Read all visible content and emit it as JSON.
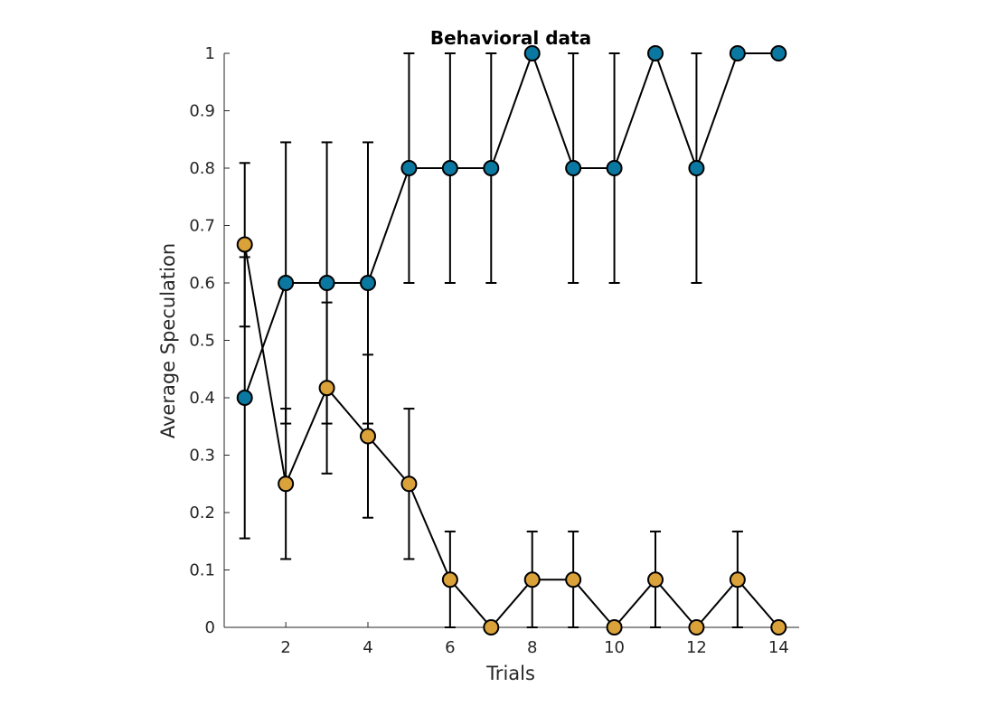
{
  "chart_data": {
    "type": "line",
    "title": "Behavioral data",
    "xlabel": "Trials",
    "ylabel": "Average Speculation",
    "xlim": [
      0.5,
      14.5
    ],
    "ylim": [
      0,
      1
    ],
    "x_ticks": [
      2,
      4,
      6,
      8,
      10,
      12,
      14
    ],
    "y_ticks": [
      0,
      0.1,
      0.2,
      0.3,
      0.4,
      0.5,
      0.6,
      0.7,
      0.8,
      0.9,
      1
    ],
    "grid": false,
    "legend": false,
    "x": [
      1,
      2,
      3,
      4,
      5,
      6,
      7,
      8,
      9,
      10,
      11,
      12,
      13,
      14
    ],
    "series": [
      {
        "color": "#0a78a0",
        "values": [
          0.4,
          0.6,
          0.6,
          0.6,
          0.8,
          0.8,
          0.8,
          1.0,
          0.8,
          0.8,
          1.0,
          0.8,
          1.0,
          1.0
        ],
        "err_low": [
          0.155,
          0.355,
          0.355,
          0.355,
          0.6,
          0.6,
          0.6,
          1.0,
          0.6,
          0.6,
          1.0,
          0.6,
          1.0,
          1.0
        ],
        "err_high": [
          0.645,
          0.845,
          0.845,
          0.845,
          1.0,
          1.0,
          1.0,
          1.0,
          1.0,
          1.0,
          1.0,
          1.0,
          1.0,
          1.0
        ]
      },
      {
        "color": "#dba23a",
        "values": [
          0.667,
          0.25,
          0.417,
          0.333,
          0.25,
          0.083,
          0.0,
          0.083,
          0.083,
          0.0,
          0.083,
          0.0,
          0.083,
          0.0
        ],
        "err_low": [
          0.524,
          0.119,
          0.268,
          0.191,
          0.119,
          0.0,
          0.0,
          0.0,
          0.0,
          0.0,
          0.0,
          0.0,
          0.0,
          0.0
        ],
        "err_high": [
          0.809,
          0.381,
          0.566,
          0.475,
          0.381,
          0.167,
          0.0,
          0.167,
          0.167,
          0.0,
          0.167,
          0.0,
          0.167,
          0.0
        ]
      }
    ]
  }
}
